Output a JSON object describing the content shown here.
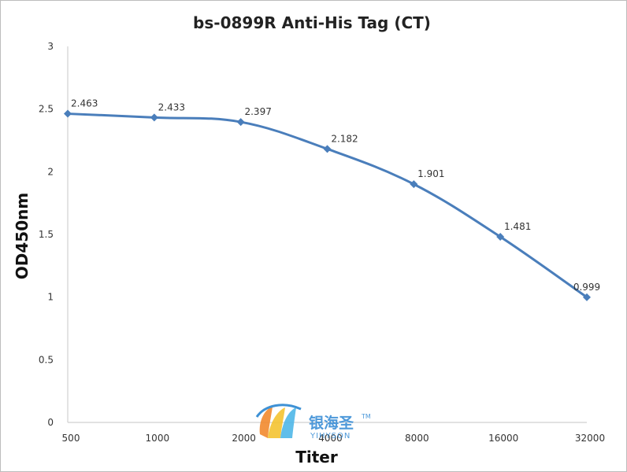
{
  "chart_data": {
    "type": "line",
    "title": "bs-0899R Anti-His Tag (CT)",
    "xlabel": "Titer",
    "ylabel": "OD450nm",
    "categories": [
      "500",
      "1000",
      "2000",
      "4000",
      "8000",
      "16000",
      "32000"
    ],
    "series": [
      {
        "values": [
          2.463,
          2.433,
          2.397,
          2.182,
          1.901,
          1.481,
          0.999
        ]
      }
    ],
    "data_labels": [
      "2.463",
      "2.433",
      "2.397",
      "2.182",
      "1.901",
      "1.481",
      "0.999"
    ],
    "ylim": [
      0,
      3
    ],
    "y_ticks": [
      0,
      0.5,
      1,
      1.5,
      2,
      2.5,
      3
    ],
    "y_tick_labels": [
      "0",
      "0.5",
      "1",
      "1.5",
      "2",
      "2.5",
      "3"
    ],
    "grid": false,
    "legend": "none",
    "line_color": "#4a7ebb",
    "marker": "diamond",
    "smooth": true
  },
  "watermark": {
    "chinese": "银海圣",
    "english": "YIHYSON",
    "tm": "TM",
    "color": "#3b8fd6"
  }
}
